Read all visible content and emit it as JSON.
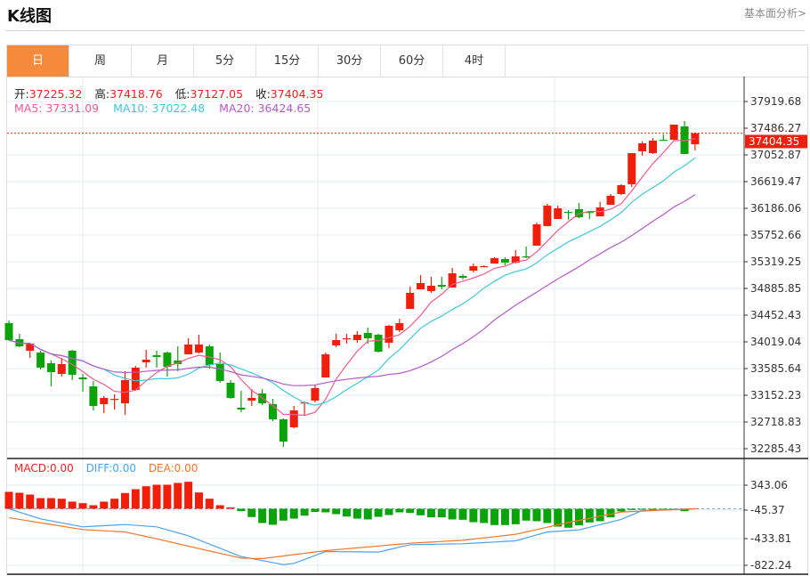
{
  "header": {
    "title": "K线图",
    "link": "基本面分析>"
  },
  "tabs": [
    {
      "label": "日",
      "active": true
    },
    {
      "label": "周"
    },
    {
      "label": "月"
    },
    {
      "label": "5分"
    },
    {
      "label": "15分"
    },
    {
      "label": "30分"
    },
    {
      "label": "60分"
    },
    {
      "label": "4时"
    }
  ],
  "ohlc": {
    "open_label": "开:",
    "open": "37225.32",
    "high_label": "高:",
    "high": "37418.76",
    "low_label": "低:",
    "low": "37127.05",
    "close_label": "收:",
    "close": "37404.35"
  },
  "ma": {
    "ma5": "MA5: 37331.09",
    "ma10": "MA10: 37022.48",
    "ma20": "MA20: 36424.65"
  },
  "macd_legend": {
    "macd": "MACD:0.00",
    "diff": "DIFF:0.00",
    "dea": "DEA:0.00"
  },
  "price_axis": [
    "37919.68",
    "37486.27",
    "37052.87",
    "36619.47",
    "36186.06",
    "35752.66",
    "35319.25",
    "34885.85",
    "34452.43",
    "34019.04",
    "33585.64",
    "33152.23",
    "32718.83",
    "32285.43"
  ],
  "current_price": "37404.35",
  "macd_axis": [
    "343.06",
    "-45.37",
    "-433.81",
    "-822.24"
  ],
  "colors": {
    "up": "#f01e0a",
    "down": "#0aa30a",
    "ma5": "#f05a8c",
    "ma10": "#3cc8dc",
    "ma20": "#b45ac8",
    "diff": "#4aa3f0",
    "dea": "#f07828",
    "tab_active": "#f58a3c"
  },
  "chart_data": {
    "type": "candlestick",
    "candles_ocHl": [
      [
        34323,
        34048,
        34366,
        34034
      ],
      [
        34063,
        33947,
        34150,
        33933
      ],
      [
        33875,
        33990,
        34005,
        33759
      ],
      [
        33846,
        33601,
        33875,
        33572
      ],
      [
        33672,
        33528,
        33716,
        33297
      ],
      [
        33499,
        33658,
        33759,
        33456
      ],
      [
        33875,
        33485,
        33889,
        33398
      ],
      [
        33441,
        33412,
        33499,
        33210
      ],
      [
        33297,
        32979,
        33384,
        32907
      ],
      [
        33008,
        33109,
        33138,
        32863
      ],
      [
        33080,
        33094,
        33167,
        32921
      ],
      [
        33022,
        33398,
        33543,
        32834
      ],
      [
        33239,
        33601,
        33630,
        33224
      ],
      [
        33687,
        33730,
        33889,
        33601
      ],
      [
        33802,
        33774,
        33875,
        33601
      ],
      [
        33846,
        33615,
        33860,
        33456
      ],
      [
        33716,
        33658,
        33947,
        33543
      ],
      [
        33817,
        33976,
        34077,
        33817
      ],
      [
        33846,
        33976,
        34135,
        33831
      ],
      [
        33947,
        33644,
        33976,
        33586
      ],
      [
        33658,
        33384,
        33846,
        33355
      ],
      [
        33355,
        33109,
        33398,
        33094
      ],
      [
        32950,
        32921,
        33224,
        32878
      ],
      [
        33066,
        33109,
        33253,
        32979
      ],
      [
        33181,
        33022,
        33253,
        32993
      ],
      [
        33008,
        32762,
        33094,
        32733
      ],
      [
        32762,
        32401,
        32777,
        32314
      ],
      [
        32632,
        32907,
        32979,
        32618
      ],
      [
        33022,
        33037,
        33051,
        32834
      ],
      [
        33066,
        33268,
        33326,
        33037
      ],
      [
        33441,
        33817,
        33846,
        33441
      ],
      [
        33962,
        34048,
        34150,
        33933
      ],
      [
        34063,
        34077,
        34150,
        33990
      ],
      [
        34048,
        34135,
        34193,
        34005
      ],
      [
        34164,
        34077,
        34251,
        33990
      ],
      [
        34135,
        33860,
        34150,
        33846
      ],
      [
        34005,
        34280,
        34294,
        33918
      ],
      [
        34207,
        34323,
        34395,
        34178
      ],
      [
        34554,
        34814,
        34915,
        34554
      ],
      [
        34872,
        34973,
        35103,
        34872
      ],
      [
        34843,
        34930,
        35074,
        34814
      ],
      [
        34944,
        34915,
        35074,
        34872
      ],
      [
        34901,
        35132,
        35218,
        34901
      ],
      [
        35088,
        35059,
        35117,
        35030
      ],
      [
        35175,
        35247,
        35290,
        35146
      ],
      [
        35233,
        35247,
        35262,
        35233
      ],
      [
        35290,
        35377,
        35392,
        35290
      ],
      [
        35363,
        35305,
        35392,
        35262
      ],
      [
        35305,
        35406,
        35507,
        35290
      ],
      [
        35406,
        35392,
        35565,
        35377
      ],
      [
        35580,
        35926,
        35955,
        35580
      ],
      [
        35898,
        36230,
        36259,
        35898
      ],
      [
        36013,
        36186,
        36230,
        36013
      ],
      [
        36128,
        36114,
        36157,
        35999
      ],
      [
        36172,
        36042,
        36273,
        36027
      ],
      [
        36128,
        36114,
        36143,
        36013
      ],
      [
        36056,
        36201,
        36288,
        36056
      ],
      [
        36244,
        36389,
        36418,
        36244
      ],
      [
        36418,
        36562,
        36577,
        36403
      ],
      [
        36577,
        37082,
        37082,
        36533
      ],
      [
        37111,
        37241,
        37270,
        37039
      ],
      [
        37082,
        37284,
        37328,
        37068
      ],
      [
        37299,
        37284,
        37386,
        37284
      ],
      [
        37299,
        37544,
        37544,
        37284
      ],
      [
        37515,
        37068,
        37602,
        37068
      ],
      [
        37225.32,
        37404.35,
        37418.76,
        37127.05
      ]
    ],
    "price_range": [
      32285.43,
      37919.68
    ],
    "macd_hist": [
      246,
      233,
      207,
      155,
      155,
      147,
      104,
      82,
      52,
      104,
      147,
      229,
      285,
      328,
      350,
      350,
      376,
      393,
      237,
      147,
      52,
      20,
      -35,
      -120,
      -207,
      -233,
      -172,
      -143,
      -100,
      -45,
      -52,
      -78,
      -113,
      -143,
      -155,
      -117,
      -91,
      -52,
      -60,
      -95,
      -125,
      -125,
      -155,
      -160,
      -195,
      -207,
      -237,
      -237,
      -225,
      -172,
      -181,
      -207,
      -259,
      -276,
      -241,
      -199,
      -181,
      -125,
      -39,
      -17,
      -13,
      -13,
      -9,
      -6,
      -35,
      0
    ],
    "diff_points": [
      [
        0,
        0
      ],
      [
        3,
        -147
      ],
      [
        7,
        -263
      ],
      [
        11,
        -229
      ],
      [
        14,
        -263
      ],
      [
        17,
        -393
      ],
      [
        22,
        -695
      ],
      [
        26,
        -812
      ],
      [
        27,
        -794
      ],
      [
        30,
        -622
      ],
      [
        35,
        -630
      ],
      [
        38,
        -522
      ],
      [
        43,
        -509
      ],
      [
        48,
        -466
      ],
      [
        51,
        -337
      ],
      [
        54,
        -307
      ],
      [
        58,
        -155
      ],
      [
        60,
        -26
      ],
      [
        65,
        0
      ]
    ],
    "dea_points": [
      [
        0,
        -130
      ],
      [
        7,
        -302
      ],
      [
        11,
        -337
      ],
      [
        14,
        -436
      ],
      [
        17,
        -544
      ],
      [
        22,
        -717
      ],
      [
        24,
        -725
      ],
      [
        30,
        -609
      ],
      [
        38,
        -501
      ],
      [
        43,
        -458
      ],
      [
        48,
        -371
      ],
      [
        53,
        -199
      ],
      [
        58,
        -47
      ],
      [
        65,
        0
      ]
    ],
    "macd_range": [
      -822.24,
      343.06
    ]
  }
}
